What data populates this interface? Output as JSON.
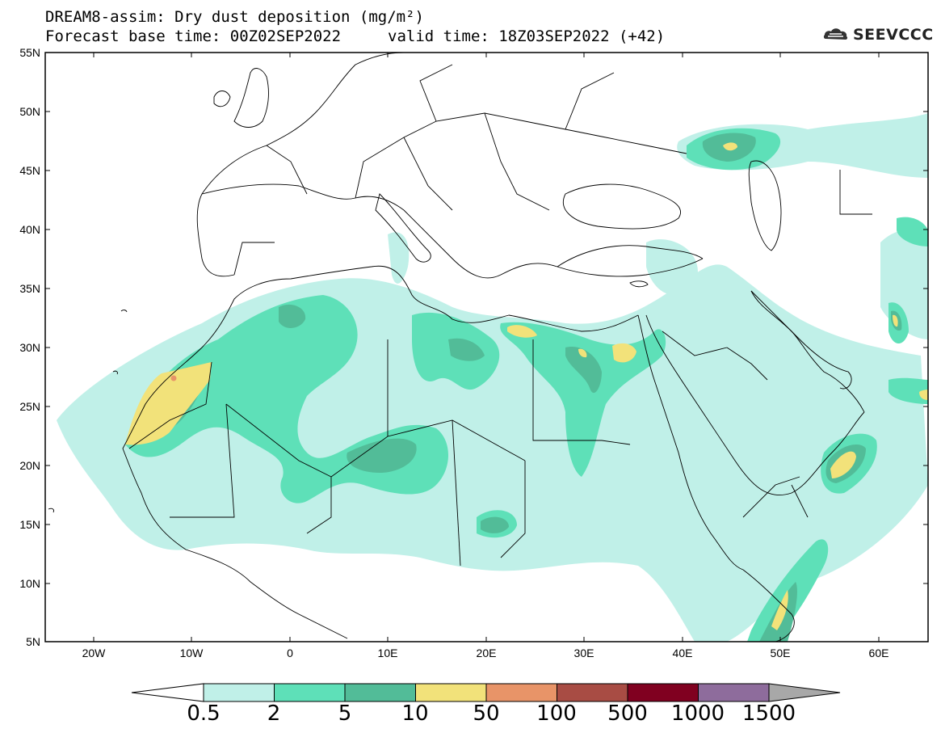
{
  "header": {
    "title_line1": "DREAM8-assim: Dry dust deposition (mg/m²)",
    "title_line2_base": "Forecast base time: 00Z02SEP2022",
    "title_line2_valid": "valid time: 18Z03SEP2022 (+42)",
    "logo_text": "SEEVCCC"
  },
  "axes": {
    "y_ticks": [
      "55N",
      "50N",
      "45N",
      "40N",
      "35N",
      "30N",
      "25N",
      "20N",
      "15N",
      "10N",
      "5N"
    ],
    "x_ticks": [
      "20W",
      "10W",
      "0",
      "10E",
      "20E",
      "30E",
      "40E",
      "50E",
      "60E"
    ]
  },
  "colorbar": {
    "levels": [
      "0.5",
      "2",
      "5",
      "10",
      "50",
      "100",
      "500",
      "1000",
      "1500"
    ],
    "colors": [
      "#c0f0e8",
      "#5ee0b8",
      "#52bc98",
      "#f2e27a",
      "#e89468",
      "#a84c44",
      "#800020",
      "#8e6c9c"
    ],
    "under_color": "#ffffff",
    "over_color": "#a8a8a8"
  },
  "colors": {
    "land_border": "#000000",
    "dust_light": "#c0f0e8",
    "dust_medium": "#5ee0b8",
    "dust_dark": "#52bc98",
    "dust_high": "#f2e27a",
    "dust_peak": "#e89468"
  }
}
